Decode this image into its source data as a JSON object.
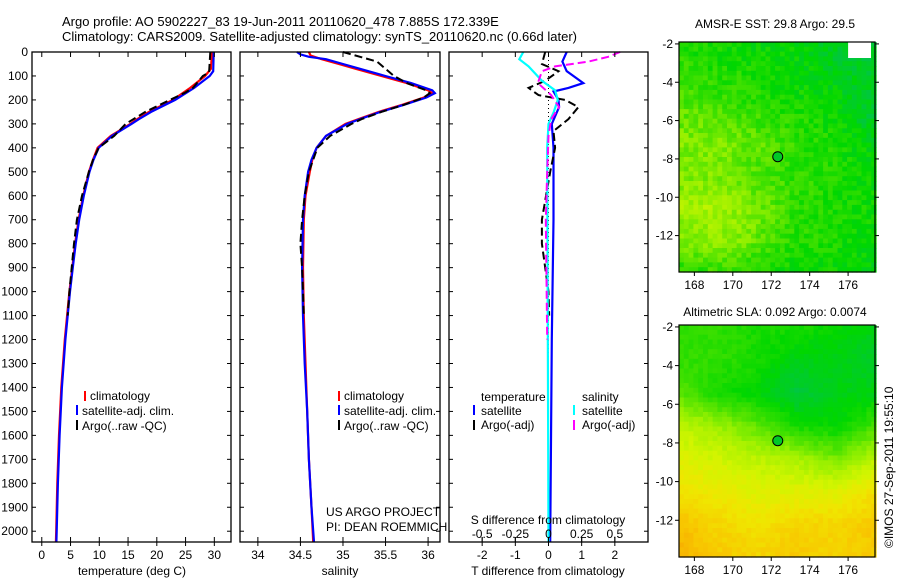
{
  "title": {
    "line1": "Argo profile: AO 5902227_83 19-Jun-2011 20110620_478 7.885S 172.339E",
    "line2": "Climatology: CARS2009. Satellite-adjusted climatology: synTS_20110620.nc (0.66d later)"
  },
  "colors": {
    "climatology": "#ff0000",
    "satellite": "#0000ff",
    "argo": "#000000",
    "salinity_satellite": "#00ffff",
    "salinity_argo": "#ff00ff"
  },
  "chart_data": [
    {
      "type": "line",
      "id": "temperature",
      "xlabel": "temperature (deg C)",
      "ylabel": "",
      "xlim": [
        -1.7,
        32.9
      ],
      "ylim": [
        2045,
        0
      ],
      "xticks": [
        0,
        5,
        10,
        15,
        20,
        25,
        30
      ],
      "yticks": [
        0,
        100,
        200,
        300,
        400,
        500,
        600,
        700,
        800,
        900,
        1000,
        1100,
        1200,
        1300,
        1400,
        1500,
        1600,
        1700,
        1800,
        1900,
        2000
      ],
      "legend": {
        "placement": "bottom-center",
        "entries": [
          "climatology",
          "satellite-adj. clim.",
          "Argo(..raw -QC)"
        ]
      },
      "series": [
        {
          "name": "climatology",
          "color": "#ff0000",
          "dash": false,
          "depth": [
            0,
            70,
            100,
            150,
            200,
            250,
            280,
            300,
            350,
            400,
            450,
            500,
            600,
            700,
            800,
            900,
            1000,
            1200,
            1400,
            1600,
            1800,
            2000,
            2045
          ],
          "values": [
            29.6,
            29.4,
            28.4,
            25.8,
            22.8,
            18.6,
            16.6,
            15.4,
            12,
            9.7,
            8.9,
            8.2,
            7.2,
            6.4,
            5.8,
            5.3,
            4.8,
            4.0,
            3.4,
            3.0,
            2.7,
            2.5,
            2.45
          ]
        },
        {
          "name": "satellite-adj. clim.",
          "color": "#0000ff",
          "dash": false,
          "depth": [
            0,
            80,
            100,
            150,
            200,
            250,
            280,
            300,
            350,
            400,
            450,
            500,
            600,
            700,
            800,
            900,
            1000,
            1200,
            1400,
            1600,
            1800,
            2000,
            2045
          ],
          "values": [
            29.9,
            29.8,
            29.2,
            26.5,
            23.2,
            19.0,
            16.9,
            15.6,
            12.2,
            9.9,
            9.0,
            8.3,
            7.3,
            6.5,
            5.9,
            5.4,
            4.9,
            4.1,
            3.5,
            3.1,
            2.8,
            2.6,
            2.55
          ]
        },
        {
          "name": "Argo(..raw -QC)",
          "color": "#000000",
          "dash": true,
          "depth": [
            0,
            85,
            100,
            150,
            170,
            200,
            250,
            300,
            350,
            400,
            450,
            500,
            600,
            700,
            800,
            900,
            1000,
            1100
          ],
          "values": [
            29.3,
            29.1,
            28.0,
            26.3,
            24.9,
            22.3,
            18.0,
            14.6,
            12.6,
            9.9,
            8.9,
            8.2,
            7.0,
            6.1,
            5.6,
            5.2,
            4.8,
            4.5
          ]
        }
      ]
    },
    {
      "type": "line",
      "id": "salinity",
      "xlabel": "salinity",
      "xlim": [
        33.79,
        36.14
      ],
      "ylim": [
        2045,
        0
      ],
      "xticks": [
        34,
        34.5,
        35,
        35.5,
        36
      ],
      "legend": {
        "placement": "bottom-center",
        "entries": [
          "climatology",
          "satellite-adj. clim.",
          "Argo(..raw -QC)"
        ]
      },
      "annotation": [
        "US ARGO PROJECT",
        "PI: DEAN ROEMMICH"
      ],
      "series": [
        {
          "name": "climatology",
          "color": "#ff0000",
          "dash": false,
          "depth": [
            0,
            15,
            30,
            50,
            70,
            100,
            130,
            160,
            172,
            190,
            220,
            250,
            280,
            300,
            350,
            400,
            450,
            500,
            600,
            700,
            900,
            1100,
            1300,
            1500,
            1700,
            1900,
            2045
          ],
          "values": [
            34.6,
            34.62,
            34.75,
            34.95,
            35.15,
            35.45,
            35.75,
            36.0,
            36.05,
            35.95,
            35.7,
            35.42,
            35.18,
            35.03,
            34.8,
            34.69,
            34.64,
            34.61,
            34.56,
            34.54,
            34.53,
            34.54,
            34.56,
            34.58,
            34.6,
            34.63,
            34.65
          ]
        },
        {
          "name": "satellite-adj. clim.",
          "color": "#0000ff",
          "dash": false,
          "depth": [
            0,
            10,
            20,
            30,
            50,
            70,
            100,
            130,
            160,
            172,
            190,
            220,
            250,
            280,
            300,
            350,
            400,
            450,
            500,
            600,
            700,
            900,
            1100,
            1300,
            1500,
            1700,
            1900,
            2045
          ],
          "values": [
            34.46,
            34.5,
            34.6,
            34.8,
            35.0,
            35.2,
            35.5,
            35.8,
            36.05,
            36.08,
            35.98,
            35.72,
            35.44,
            35.2,
            35.05,
            34.8,
            34.69,
            34.63,
            34.59,
            34.55,
            34.53,
            34.52,
            34.53,
            34.55,
            34.58,
            34.6,
            34.63,
            34.66
          ]
        },
        {
          "name": "Argo(..raw -QC)",
          "color": "#000000",
          "dash": true,
          "depth": [
            0,
            20,
            40,
            70,
            100,
            130,
            160,
            172,
            190,
            220,
            250,
            280,
            300,
            350,
            400,
            500,
            600,
            700,
            800,
            900,
            1000,
            1100
          ],
          "values": [
            35.0,
            35.2,
            35.4,
            35.5,
            35.6,
            35.75,
            35.98,
            36.02,
            35.95,
            35.72,
            35.45,
            35.22,
            35.1,
            34.85,
            34.7,
            34.6,
            34.55,
            34.52,
            34.5,
            34.52,
            34.53,
            34.54
          ]
        }
      ]
    },
    {
      "type": "line",
      "id": "difference",
      "xlabel": "T difference from climatology",
      "xlabel_top": "S difference from climatology",
      "xlim": [
        -3,
        3
      ],
      "xlim_s": [
        -0.75,
        0.75
      ],
      "ylim": [
        2045,
        0
      ],
      "xticks": [
        -2,
        -1,
        0,
        1,
        2
      ],
      "xticks_s": [
        -0.5,
        -0.25,
        0,
        0.25,
        0.5
      ],
      "xticklabels_s": [
        "-0.5",
        "-0.25",
        "0",
        "0.25",
        "0.5"
      ],
      "legend": {
        "placement": "bottom-center",
        "temperature_header": "temperature",
        "salinity_header": "salinity",
        "entries": [
          "satellite",
          "Argo(-adj)",
          "satellite",
          "Argo(-adj)"
        ]
      },
      "series": [
        {
          "name": "T satellite",
          "axis": "T",
          "color": "#0000ff",
          "dash": false,
          "depth": [
            0,
            40,
            80,
            130,
            150,
            165,
            200,
            230,
            300,
            400,
            700,
            1200,
            2045
          ],
          "values": [
            0.55,
            0.42,
            0.55,
            1.05,
            0.6,
            0.15,
            0.3,
            0.32,
            0.1,
            0.15,
            0.15,
            0.1,
            0.05
          ]
        },
        {
          "name": "T Argo(-adj)",
          "axis": "T",
          "color": "#000000",
          "dash": true,
          "depth": [
            0,
            50,
            80,
            120,
            150,
            180,
            200,
            230,
            280,
            330,
            400,
            500,
            700,
            800,
            900,
            1000,
            1100
          ],
          "values": [
            -0.1,
            -0.2,
            0.3,
            -0.1,
            -0.6,
            -0.3,
            0.5,
            0.9,
            0.6,
            0.15,
            0.2,
            0.05,
            -0.2,
            -0.2,
            -0.1,
            0,
            0.02
          ]
        },
        {
          "name": "S satellite",
          "axis": "S",
          "color": "#00ffff",
          "dash": false,
          "depth": [
            0,
            30,
            60,
            120,
            160,
            200,
            250,
            300,
            400,
            2045
          ],
          "values": [
            -0.19,
            -0.22,
            -0.15,
            -0.05,
            0.05,
            0.07,
            0.04,
            0.0,
            -0.01,
            0.0
          ]
        },
        {
          "name": "S Argo(-adj)",
          "axis": "S",
          "color": "#ff00ff",
          "dash": true,
          "depth": [
            0,
            20,
            40,
            60,
            80,
            130,
            180,
            230,
            280,
            350,
            500,
            700,
            1200
          ],
          "values": [
            0.54,
            0.45,
            0.3,
            0.05,
            -0.05,
            -0.08,
            0.02,
            0.08,
            0.02,
            0.0,
            -0.01,
            -0.02,
            -0.01
          ]
        }
      ]
    },
    {
      "type": "heatmap",
      "id": "sst-map",
      "title": "AMSR-E SST: 29.8 Argo: 29.5",
      "xlim": [
        167.2,
        177.4
      ],
      "ylim": [
        -13.9,
        -1.9
      ],
      "xticks": [
        168,
        170,
        172,
        174,
        176
      ],
      "yticks": [
        -2,
        -4,
        -6,
        -8,
        -10,
        -12
      ],
      "marker": {
        "lon": 172.339,
        "lat": -7.885
      },
      "grid_lats": [
        -2,
        -3.7,
        -5.4,
        -7.1,
        -8.9,
        -10.6,
        -12.3,
        -14
      ],
      "grid_lons": [
        167,
        169.1,
        171.2,
        173.3,
        175.4,
        177.5
      ],
      "values": [
        [
          0.44,
          0.43,
          0.42,
          0.42,
          0.38,
          0.36
        ],
        [
          0.47,
          0.45,
          0.44,
          0.42,
          0.4,
          0.38
        ],
        [
          0.5,
          0.48,
          0.46,
          0.44,
          0.42,
          0.36
        ],
        [
          0.52,
          0.52,
          0.5,
          0.46,
          0.44,
          0.4
        ],
        [
          0.52,
          0.52,
          0.48,
          0.46,
          0.44,
          0.42
        ],
        [
          0.55,
          0.56,
          0.52,
          0.46,
          0.44,
          0.43
        ],
        [
          0.52,
          0.54,
          0.5,
          0.45,
          0.44,
          0.42
        ],
        [
          0.44,
          0.46,
          0.44,
          0.42,
          0.42,
          0.4
        ]
      ]
    },
    {
      "type": "heatmap",
      "id": "sla-map",
      "title": "Altimetric SLA: 0.092 Argo: 0.0074",
      "xlim": [
        167.2,
        177.4
      ],
      "ylim": [
        -13.9,
        -1.9
      ],
      "xticks": [
        168,
        170,
        172,
        174,
        176
      ],
      "yticks": [
        -2,
        -4,
        -6,
        -8,
        -10,
        -12
      ],
      "marker": {
        "lon": 172.339,
        "lat": -7.885
      },
      "grid_lats": [
        -2,
        -3.7,
        -5.4,
        -7.1,
        -8.9,
        -10.6,
        -12.3,
        -14
      ],
      "grid_lons": [
        167,
        169.1,
        171.2,
        173.3,
        175.4,
        177.5
      ],
      "values": [
        [
          0.46,
          0.46,
          0.44,
          0.44,
          0.42,
          0.4
        ],
        [
          0.46,
          0.46,
          0.44,
          0.4,
          0.4,
          0.38
        ],
        [
          0.5,
          0.44,
          0.42,
          0.36,
          0.4,
          0.4
        ],
        [
          0.58,
          0.55,
          0.5,
          0.44,
          0.42,
          0.48
        ],
        [
          0.62,
          0.6,
          0.58,
          0.56,
          0.52,
          0.58
        ],
        [
          0.66,
          0.64,
          0.62,
          0.62,
          0.62,
          0.66
        ],
        [
          0.72,
          0.68,
          0.66,
          0.68,
          0.68,
          0.7
        ],
        [
          0.74,
          0.7,
          0.68,
          0.7,
          0.68,
          0.7
        ]
      ]
    }
  ],
  "copyright": "©IMOS 27-Sep-2011 19:55:10"
}
